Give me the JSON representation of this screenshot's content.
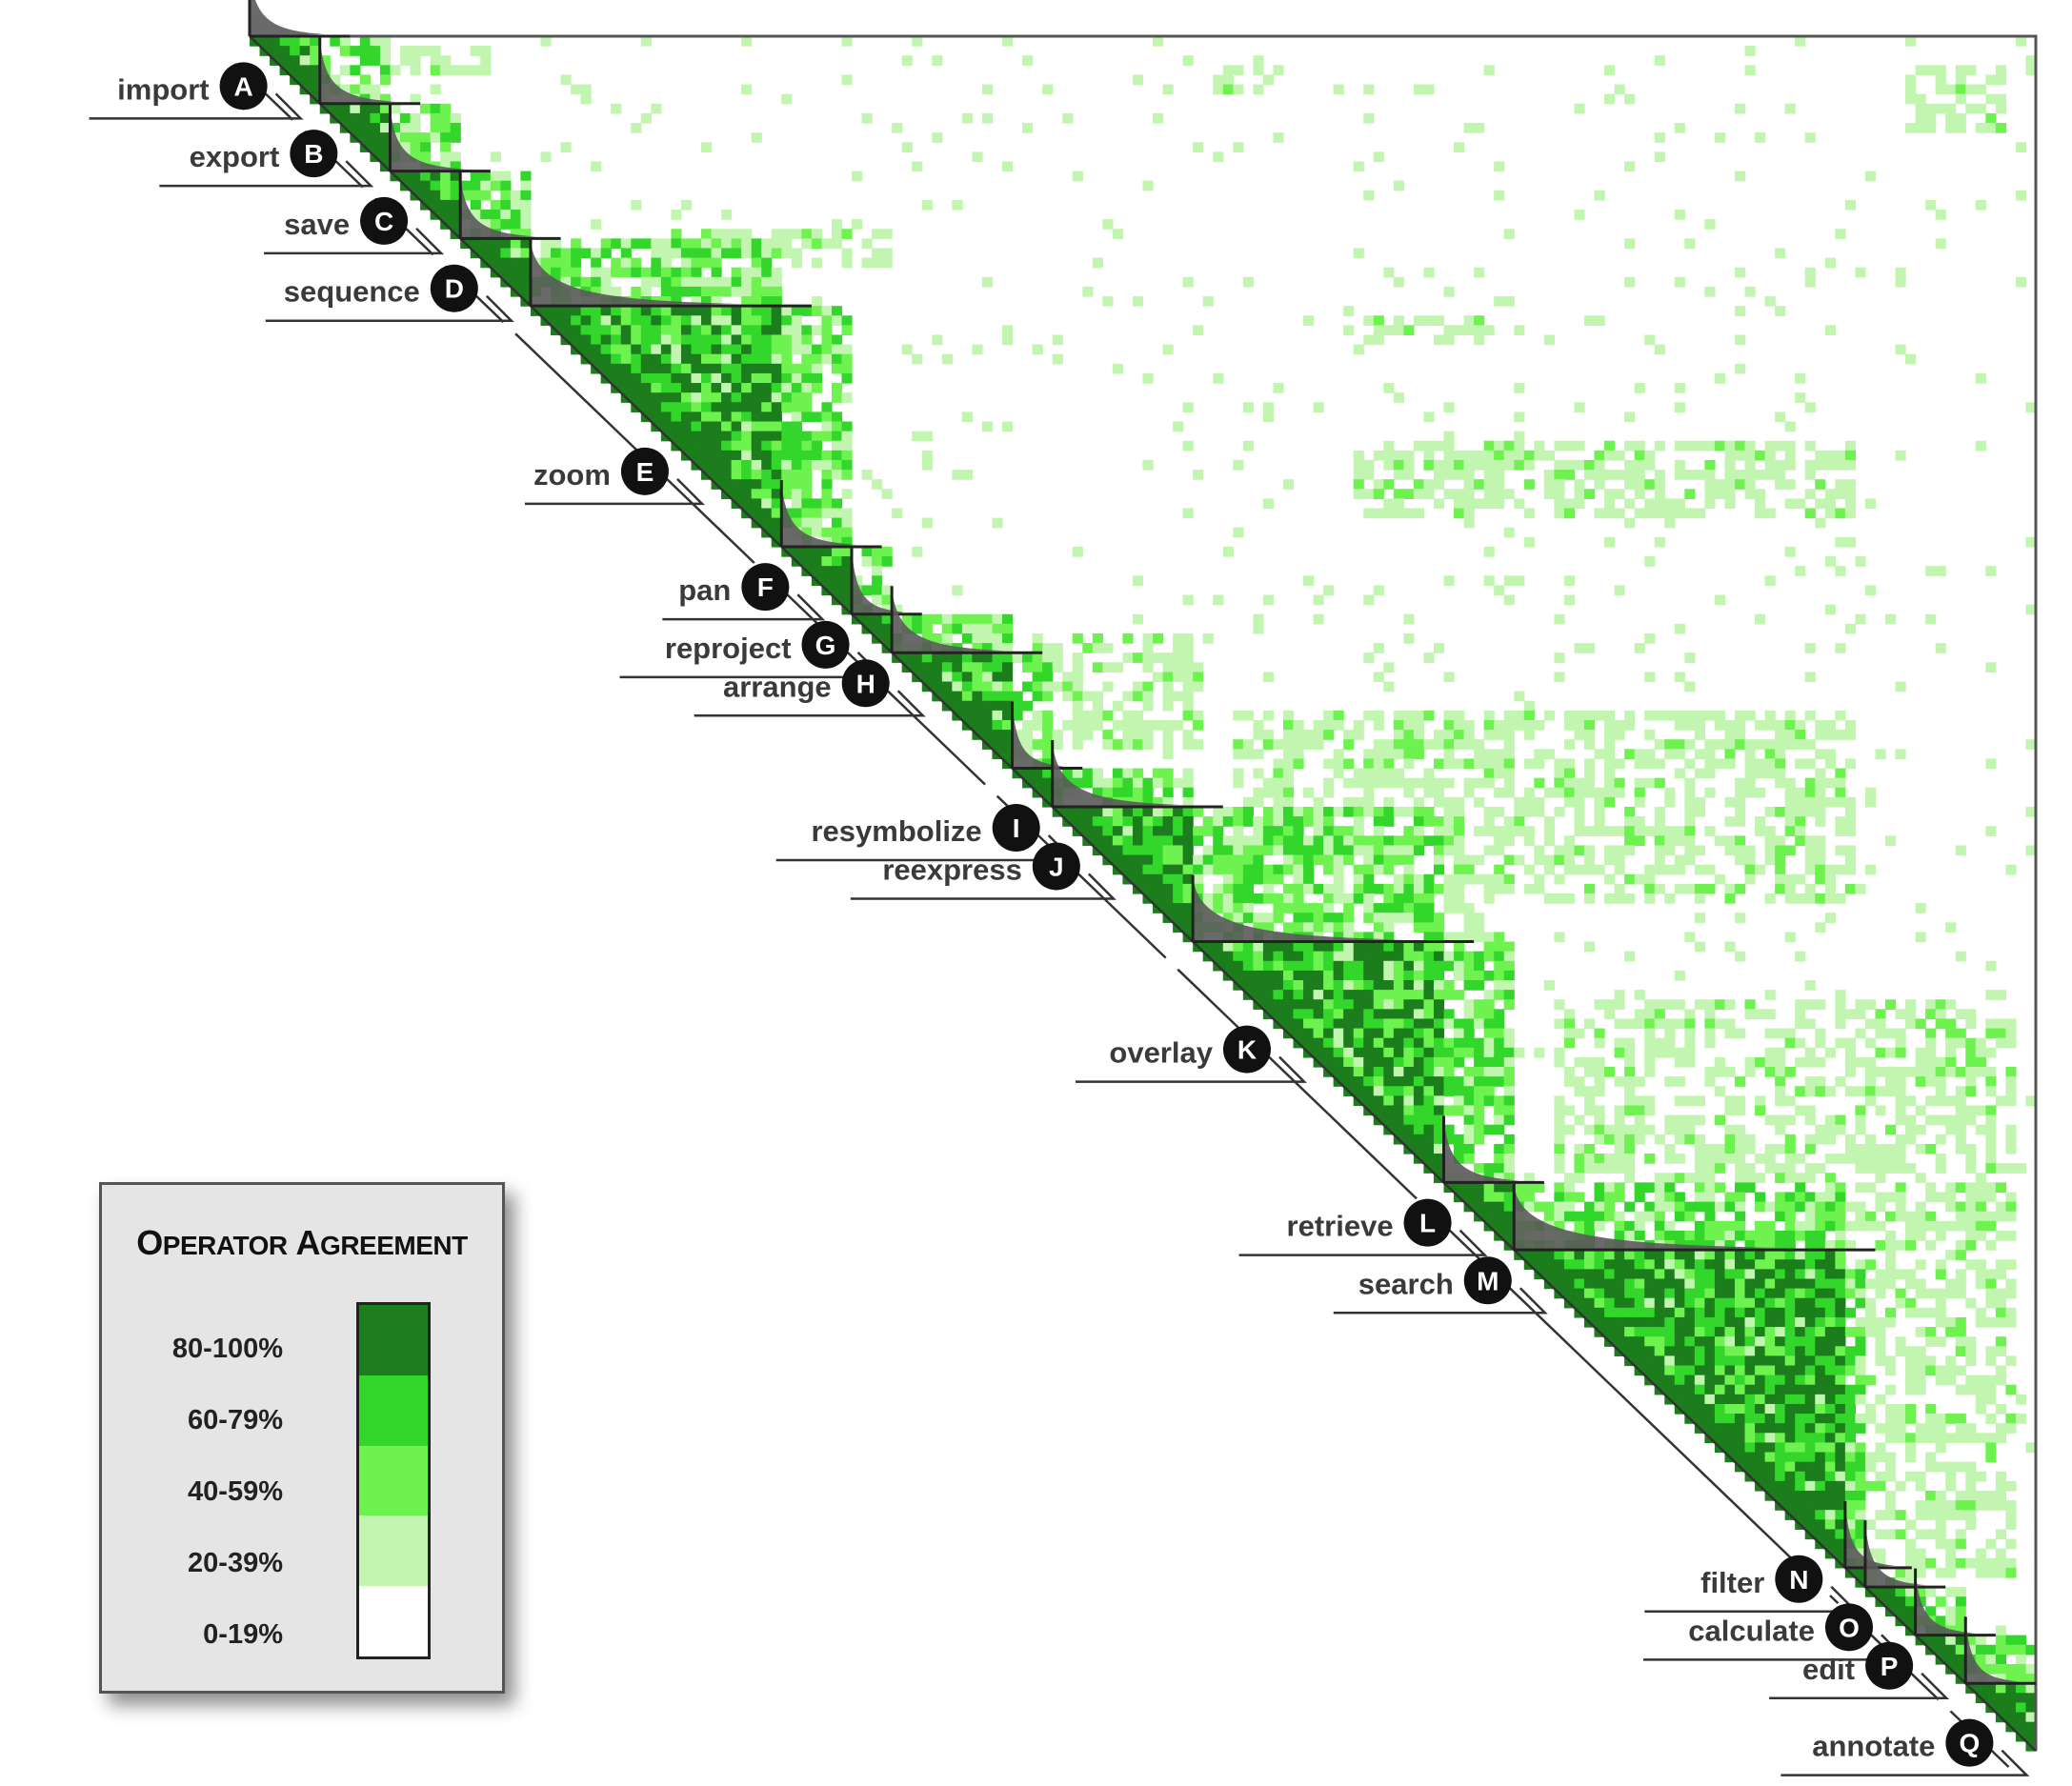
{
  "chart_data": {
    "type": "heatmap",
    "title": "",
    "xlabel": "",
    "ylabel": "",
    "operators": [
      {
        "letter": "A",
        "name": "import",
        "cell": 3
      },
      {
        "letter": "B",
        "name": "export",
        "cell": 10
      },
      {
        "letter": "C",
        "name": "save",
        "cell": 17
      },
      {
        "letter": "D",
        "name": "sequence",
        "cell": 24
      },
      {
        "letter": "E",
        "name": "zoom",
        "cell": 43
      },
      {
        "letter": "F",
        "name": "pan",
        "cell": 55
      },
      {
        "letter": "G",
        "name": "reproject",
        "cell": 61
      },
      {
        "letter": "H",
        "name": "arrange",
        "cell": 65
      },
      {
        "letter": "I",
        "name": "resymbolize",
        "cell": 80
      },
      {
        "letter": "J",
        "name": "reexpress",
        "cell": 84
      },
      {
        "letter": "K",
        "name": "overlay",
        "cell": 103
      },
      {
        "letter": "L",
        "name": "retrieve",
        "cell": 121
      },
      {
        "letter": "M",
        "name": "search",
        "cell": 127
      },
      {
        "letter": "N",
        "name": "filter",
        "cell": 158
      },
      {
        "letter": "O",
        "name": "calculate",
        "cell": 163
      },
      {
        "letter": "P",
        "name": "edit",
        "cell": 167
      },
      {
        "letter": "Q",
        "name": "annotate",
        "cell": 175
      }
    ],
    "clusters": [
      {
        "operator": "A",
        "start": 0,
        "end": 7
      },
      {
        "operator": "B",
        "start": 7,
        "end": 14
      },
      {
        "operator": "C",
        "start": 14,
        "end": 21
      },
      {
        "operator": "D",
        "start": 21,
        "end": 28
      },
      {
        "operator": "E",
        "start": 28,
        "end": 53
      },
      {
        "operator": "F",
        "start": 53,
        "end": 60
      },
      {
        "operator": "G",
        "start": 60,
        "end": 64
      },
      {
        "operator": "H",
        "start": 64,
        "end": 76
      },
      {
        "operator": "I",
        "start": 76,
        "end": 80
      },
      {
        "operator": "J",
        "start": 80,
        "end": 94
      },
      {
        "operator": "K",
        "start": 94,
        "end": 119
      },
      {
        "operator": "L",
        "start": 119,
        "end": 126
      },
      {
        "operator": "M",
        "start": 126,
        "end": 159
      },
      {
        "operator": "N",
        "start": 159,
        "end": 161
      },
      {
        "operator": "O",
        "start": 161,
        "end": 166
      },
      {
        "operator": "P",
        "start": 166,
        "end": 171
      },
      {
        "operator": "Q",
        "start": 171,
        "end": 178
      }
    ],
    "matrix_size": 178,
    "bins": [
      "0-19%",
      "20-39%",
      "40-59%",
      "60-79%",
      "80-100%"
    ],
    "bin_colors": [
      "#ffffff",
      "#c2f5b0",
      "#6ef24f",
      "#33d62a",
      "#1b7d1b"
    ],
    "legend": {
      "title": "Operator Agreement",
      "placement": "bottom-left",
      "items": [
        {
          "label": "80-100%",
          "color": "#1b7d1b"
        },
        {
          "label": "60-79%",
          "color": "#33d62a"
        },
        {
          "label": "40-59%",
          "color": "#6ef24f"
        },
        {
          "label": "20-39%",
          "color": "#c2f5b0"
        },
        {
          "label": "0-19%",
          "color": "#ffffff"
        }
      ]
    }
  }
}
